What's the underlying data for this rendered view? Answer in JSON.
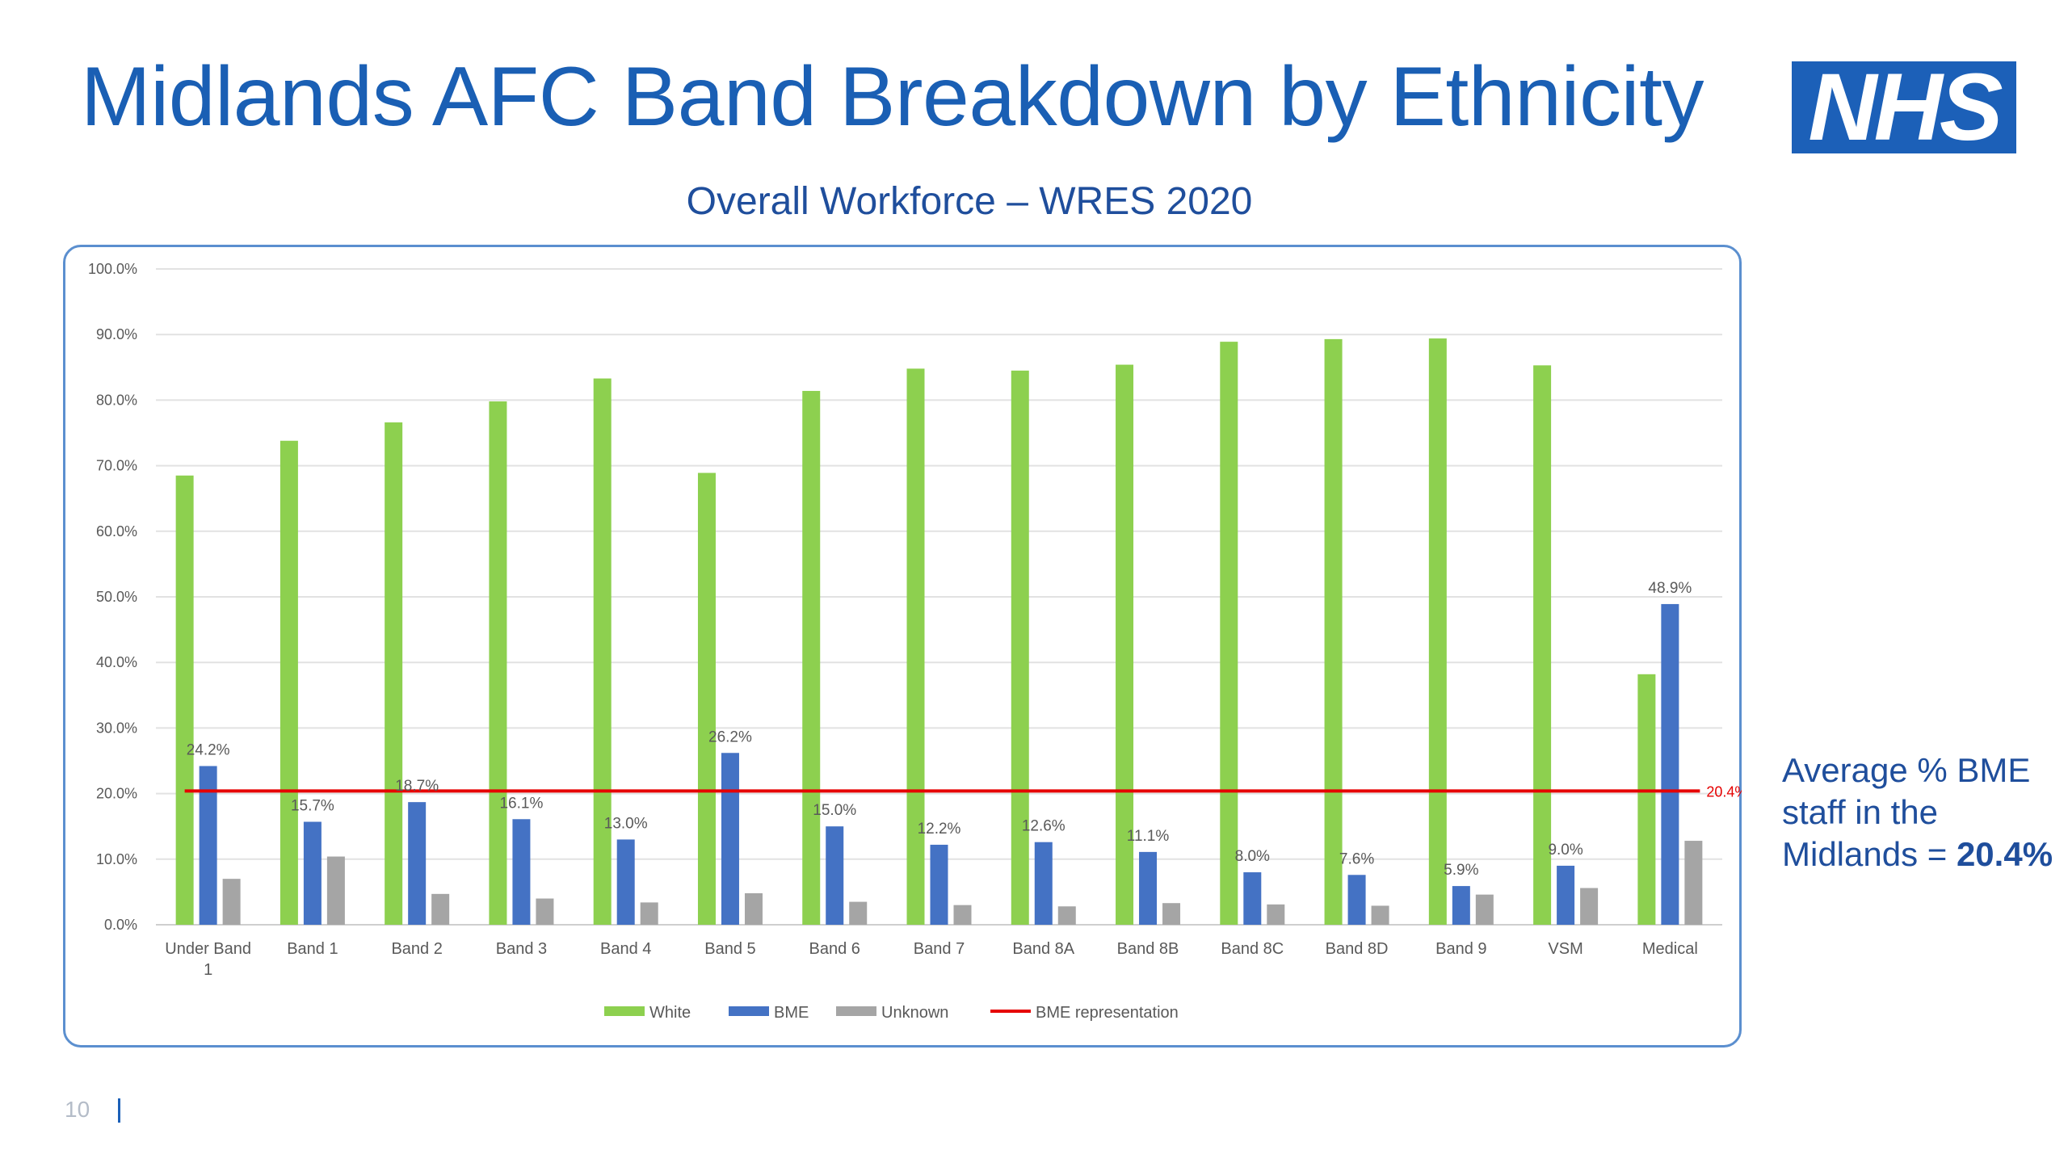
{
  "slide": {
    "title": "Midlands AFC Band Breakdown by Ethnicity",
    "logo_text": "NHS",
    "subtitle": "Overall Workforce – WRES 2020",
    "side_note": {
      "prefix": "Average % BME staff in the Midlands = ",
      "value": "20.4%"
    },
    "page_number": "10"
  },
  "colors": {
    "title": "#1a5fb4",
    "nhs_blue": "#1c60b8",
    "white_series": "#8dd04f",
    "bme_series": "#4472c4",
    "unknown_series": "#a5a5a5",
    "bme_line": "#e60000"
  },
  "chart_data": {
    "type": "bar",
    "title": "",
    "xlabel": "",
    "ylabel": "",
    "ylim": [
      0,
      100
    ],
    "yticks": [
      "0.0%",
      "10.0%",
      "20.0%",
      "30.0%",
      "40.0%",
      "50.0%",
      "60.0%",
      "70.0%",
      "80.0%",
      "90.0%",
      "100.0%"
    ],
    "grid": true,
    "legend_position": "bottom",
    "categories": [
      "Under Band 1",
      "Band 1",
      "Band 2",
      "Band 3",
      "Band 4",
      "Band 5",
      "Band 6",
      "Band 7",
      "Band 8A",
      "Band 8B",
      "Band 8C",
      "Band 8D",
      "Band 9",
      "VSM",
      "Medical"
    ],
    "series": [
      {
        "name": "White",
        "values": [
          68.5,
          73.8,
          76.6,
          79.8,
          83.3,
          68.9,
          81.4,
          84.8,
          84.5,
          85.4,
          88.9,
          89.3,
          89.4,
          85.3,
          38.2
        ]
      },
      {
        "name": "BME",
        "values": [
          24.2,
          15.7,
          18.7,
          16.1,
          13.0,
          26.2,
          15.0,
          12.2,
          12.6,
          11.1,
          8.0,
          7.6,
          5.9,
          9.0,
          48.9
        ],
        "labels": [
          "24.2%",
          "15.7%",
          "18.7%",
          "16.1%",
          "13.0%",
          "26.2%",
          "15.0%",
          "12.2%",
          "12.6%",
          "11.1%",
          "8.0%",
          "7.6%",
          "5.9%",
          "9.0%",
          "48.9%"
        ]
      },
      {
        "name": "Unknown",
        "values": [
          7.0,
          10.4,
          4.7,
          4.0,
          3.4,
          4.8,
          3.5,
          3.0,
          2.8,
          3.3,
          3.1,
          2.9,
          4.6,
          5.6,
          12.8
        ]
      }
    ],
    "reference_line": {
      "name": "BME representation",
      "value": 20.4,
      "label": "20.4%"
    }
  }
}
